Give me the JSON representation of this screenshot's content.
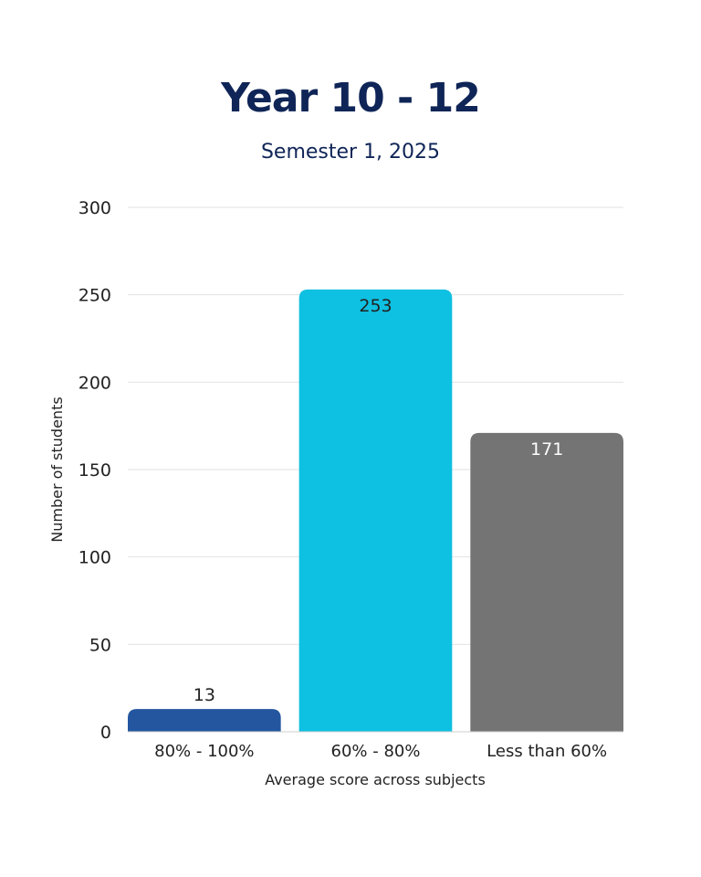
{
  "chart_data": {
    "type": "bar",
    "title": "Year 10 - 12",
    "subtitle": "Semester 1, 2025",
    "xlabel": "Average score across subjects",
    "ylabel": "Number of students",
    "ylim": [
      0,
      300
    ],
    "yticks": [
      "0",
      "50",
      "100",
      "150",
      "200",
      "250",
      "300"
    ],
    "yticks_values": [
      0,
      50,
      100,
      150,
      200,
      250,
      300
    ],
    "grid": true,
    "categories": [
      "80% - 100%",
      "60% - 80%",
      "Less than 60%"
    ],
    "values": [
      13,
      253,
      171
    ],
    "data_labels": [
      "13",
      "253",
      "171"
    ],
    "colors": [
      "#23569f",
      "#0ec0e1",
      "#747474"
    ],
    "label_colors": [
      "#222222",
      "#222222",
      "#ffffff"
    ],
    "label_positions": [
      "outside",
      "inside",
      "inside"
    ]
  }
}
